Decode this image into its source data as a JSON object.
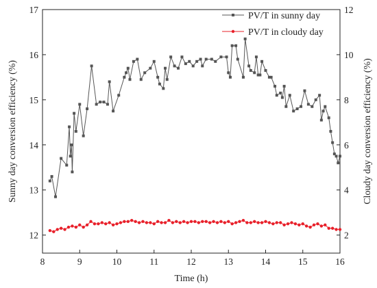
{
  "chart_data": {
    "type": "line",
    "xlabel": "Time (h)",
    "ylabel_left": "Sunny day conversion efficiency (%)",
    "ylabel_right": "Cloudy day conversion efficiency (%)",
    "xlim": [
      8,
      16
    ],
    "ylim_left": [
      11.6,
      17
    ],
    "ylim_right": [
      1.2,
      12
    ],
    "xticks": [
      "8",
      "9",
      "10",
      "11",
      "12",
      "13",
      "14",
      "15",
      "16"
    ],
    "yticks_left": [
      "12",
      "13",
      "14",
      "15",
      "16",
      "17"
    ],
    "yticks_right": [
      "2",
      "4",
      "6",
      "8",
      "10",
      "12"
    ],
    "grid": false,
    "legend_position": "top-right",
    "series": [
      {
        "name": "PV/T in sunny day",
        "axis": "left",
        "color": "#555555",
        "marker": "square",
        "points": [
          [
            8.2,
            13.2
          ],
          [
            8.25,
            13.3
          ],
          [
            8.35,
            12.85
          ],
          [
            8.5,
            13.7
          ],
          [
            8.65,
            13.55
          ],
          [
            8.72,
            14.4
          ],
          [
            8.75,
            13.75
          ],
          [
            8.78,
            14.0
          ],
          [
            8.8,
            13.4
          ],
          [
            8.85,
            14.7
          ],
          [
            8.9,
            14.3
          ],
          [
            9.0,
            14.9
          ],
          [
            9.1,
            14.2
          ],
          [
            9.2,
            14.8
          ],
          [
            9.32,
            15.75
          ],
          [
            9.45,
            14.9
          ],
          [
            9.55,
            14.95
          ],
          [
            9.65,
            14.95
          ],
          [
            9.75,
            14.9
          ],
          [
            9.8,
            15.4
          ],
          [
            9.9,
            14.75
          ],
          [
            10.05,
            15.1
          ],
          [
            10.2,
            15.5
          ],
          [
            10.25,
            15.6
          ],
          [
            10.3,
            15.7
          ],
          [
            10.35,
            15.45
          ],
          [
            10.45,
            15.85
          ],
          [
            10.55,
            15.9
          ],
          [
            10.65,
            15.45
          ],
          [
            10.75,
            15.6
          ],
          [
            10.9,
            15.7
          ],
          [
            11.0,
            15.85
          ],
          [
            11.1,
            15.5
          ],
          [
            11.15,
            15.35
          ],
          [
            11.25,
            15.25
          ],
          [
            11.3,
            15.7
          ],
          [
            11.35,
            15.45
          ],
          [
            11.45,
            15.95
          ],
          [
            11.55,
            15.75
          ],
          [
            11.65,
            15.7
          ],
          [
            11.75,
            15.95
          ],
          [
            11.85,
            15.8
          ],
          [
            11.95,
            15.85
          ],
          [
            12.05,
            15.75
          ],
          [
            12.15,
            15.85
          ],
          [
            12.25,
            15.9
          ],
          [
            12.3,
            15.75
          ],
          [
            12.4,
            15.9
          ],
          [
            12.55,
            15.9
          ],
          [
            12.65,
            15.85
          ],
          [
            12.8,
            15.95
          ],
          [
            12.95,
            15.95
          ],
          [
            13.0,
            15.6
          ],
          [
            13.05,
            15.5
          ],
          [
            13.1,
            16.2
          ],
          [
            13.2,
            16.2
          ],
          [
            13.25,
            15.9
          ],
          [
            13.4,
            15.5
          ],
          [
            13.45,
            16.35
          ],
          [
            13.55,
            15.75
          ],
          [
            13.6,
            15.65
          ],
          [
            13.7,
            15.6
          ],
          [
            13.75,
            15.95
          ],
          [
            13.8,
            15.55
          ],
          [
            13.85,
            15.55
          ],
          [
            13.9,
            15.85
          ],
          [
            14.0,
            15.65
          ],
          [
            14.1,
            15.5
          ],
          [
            14.15,
            15.5
          ],
          [
            14.25,
            15.3
          ],
          [
            14.3,
            15.1
          ],
          [
            14.4,
            15.15
          ],
          [
            14.45,
            15.05
          ],
          [
            14.5,
            15.3
          ],
          [
            14.55,
            14.85
          ],
          [
            14.65,
            15.1
          ],
          [
            14.75,
            14.75
          ],
          [
            14.85,
            14.8
          ],
          [
            14.95,
            14.85
          ],
          [
            15.05,
            15.2
          ],
          [
            15.15,
            14.9
          ],
          [
            15.25,
            14.85
          ],
          [
            15.35,
            15.0
          ],
          [
            15.45,
            15.1
          ],
          [
            15.5,
            14.55
          ],
          [
            15.55,
            14.75
          ],
          [
            15.6,
            14.85
          ],
          [
            15.7,
            14.6
          ],
          [
            15.75,
            14.3
          ],
          [
            15.8,
            14.05
          ],
          [
            15.85,
            13.8
          ],
          [
            15.9,
            13.75
          ],
          [
            15.95,
            13.6
          ],
          [
            16.0,
            13.75
          ]
        ]
      },
      {
        "name": "PV/T in cloudy day",
        "axis": "right",
        "color": "#e8202a",
        "marker": "dot",
        "points": [
          [
            8.2,
            2.2
          ],
          [
            8.3,
            2.15
          ],
          [
            8.4,
            2.25
          ],
          [
            8.5,
            2.3
          ],
          [
            8.6,
            2.25
          ],
          [
            8.7,
            2.35
          ],
          [
            8.8,
            2.4
          ],
          [
            8.9,
            2.35
          ],
          [
            9.0,
            2.45
          ],
          [
            9.1,
            2.35
          ],
          [
            9.2,
            2.45
          ],
          [
            9.3,
            2.6
          ],
          [
            9.4,
            2.5
          ],
          [
            9.5,
            2.5
          ],
          [
            9.6,
            2.55
          ],
          [
            9.7,
            2.5
          ],
          [
            9.8,
            2.55
          ],
          [
            9.9,
            2.45
          ],
          [
            10.0,
            2.5
          ],
          [
            10.1,
            2.55
          ],
          [
            10.2,
            2.6
          ],
          [
            10.3,
            2.6
          ],
          [
            10.4,
            2.65
          ],
          [
            10.5,
            2.6
          ],
          [
            10.6,
            2.55
          ],
          [
            10.7,
            2.6
          ],
          [
            10.8,
            2.55
          ],
          [
            10.9,
            2.55
          ],
          [
            11.0,
            2.5
          ],
          [
            11.1,
            2.6
          ],
          [
            11.2,
            2.55
          ],
          [
            11.3,
            2.55
          ],
          [
            11.4,
            2.65
          ],
          [
            11.5,
            2.55
          ],
          [
            11.6,
            2.6
          ],
          [
            11.7,
            2.55
          ],
          [
            11.8,
            2.6
          ],
          [
            11.9,
            2.55
          ],
          [
            12.0,
            2.6
          ],
          [
            12.1,
            2.6
          ],
          [
            12.2,
            2.55
          ],
          [
            12.3,
            2.6
          ],
          [
            12.4,
            2.6
          ],
          [
            12.5,
            2.55
          ],
          [
            12.6,
            2.6
          ],
          [
            12.7,
            2.55
          ],
          [
            12.8,
            2.6
          ],
          [
            12.9,
            2.55
          ],
          [
            13.0,
            2.6
          ],
          [
            13.1,
            2.5
          ],
          [
            13.2,
            2.55
          ],
          [
            13.3,
            2.6
          ],
          [
            13.4,
            2.65
          ],
          [
            13.5,
            2.55
          ],
          [
            13.6,
            2.55
          ],
          [
            13.7,
            2.6
          ],
          [
            13.8,
            2.55
          ],
          [
            13.9,
            2.55
          ],
          [
            14.0,
            2.6
          ],
          [
            14.1,
            2.55
          ],
          [
            14.2,
            2.5
          ],
          [
            14.3,
            2.55
          ],
          [
            14.4,
            2.55
          ],
          [
            14.5,
            2.45
          ],
          [
            14.6,
            2.5
          ],
          [
            14.7,
            2.55
          ],
          [
            14.8,
            2.5
          ],
          [
            14.9,
            2.45
          ],
          [
            15.0,
            2.5
          ],
          [
            15.1,
            2.4
          ],
          [
            15.2,
            2.35
          ],
          [
            15.3,
            2.45
          ],
          [
            15.4,
            2.5
          ],
          [
            15.5,
            2.4
          ],
          [
            15.6,
            2.45
          ],
          [
            15.7,
            2.3
          ],
          [
            15.8,
            2.3
          ],
          [
            15.9,
            2.25
          ],
          [
            16.0,
            2.25
          ]
        ]
      }
    ]
  }
}
